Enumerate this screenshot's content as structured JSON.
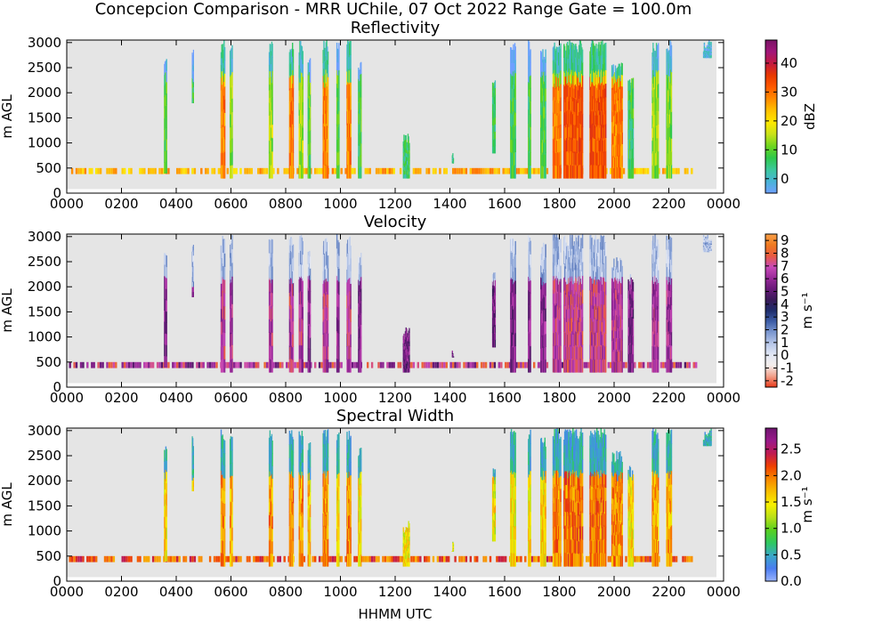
{
  "figure": {
    "suptitle": "Concepcion Comparison - MRR UChile, 07 Oct 2022 Range Gate = 100.0m",
    "xlabel": "HHMM UTC"
  },
  "chart_data": [
    {
      "type": "heatmap",
      "title": "Reflectivity",
      "ylabel": "m AGL",
      "xticks": [
        "0000",
        "0200",
        "0400",
        "0600",
        "0800",
        "1000",
        "1200",
        "1400",
        "1600",
        "1800",
        "2000",
        "2200",
        "0000"
      ],
      "yticks": [
        "0",
        "500",
        "1000",
        "1500",
        "2000",
        "2500",
        "3000"
      ],
      "ylim": [
        0,
        3050
      ],
      "colorbar": {
        "label": "dBZ",
        "range": [
          -5,
          48
        ],
        "ticks": [
          "0",
          "10",
          "20",
          "30",
          "40"
        ],
        "tick_values": [
          0,
          10,
          20,
          30,
          40
        ],
        "colors": [
          "#6fa0ff",
          "#48b4d6",
          "#3cc89c",
          "#2ec84a",
          "#6fd61e",
          "#c8e21a",
          "#ffe800",
          "#ffc200",
          "#ff8a00",
          "#ff5a00",
          "#e83800",
          "#c41a3e",
          "#a2167a",
          "#7a1466"
        ]
      },
      "background": "#e5e5e5"
    },
    {
      "type": "heatmap",
      "title": "Velocity",
      "ylabel": "m s⁻¹",
      "yaxis_label": "m AGL",
      "xticks": [
        "0000",
        "0200",
        "0400",
        "0600",
        "0800",
        "1000",
        "1200",
        "1400",
        "1600",
        "1800",
        "2000",
        "2200",
        "0000"
      ],
      "yticks": [
        "0",
        "500",
        "1000",
        "1500",
        "2000",
        "2500",
        "3000"
      ],
      "ylim": [
        0,
        3050
      ],
      "colorbar": {
        "label": "m s⁻¹",
        "range": [
          -2.5,
          9.5
        ],
        "ticks": [
          "-2",
          "-1",
          "0",
          "1",
          "2",
          "3",
          "4",
          "5",
          "6",
          "7",
          "8",
          "9"
        ],
        "tick_values": [
          -2,
          -1,
          0,
          1,
          2,
          3,
          4,
          5,
          6,
          7,
          8,
          9
        ],
        "colors": [
          "#e83a1a",
          "#f2a08a",
          "#f4eeec",
          "#e0e6f4",
          "#b6c6e8",
          "#7c98d0",
          "#3e5ea8",
          "#1e2c6a",
          "#3a1a58",
          "#6a1a7a",
          "#9a2a9a",
          "#c84ab8",
          "#e85a40",
          "#f07a20",
          "#f8a048"
        ]
      },
      "background": "#e5e5e5"
    },
    {
      "type": "heatmap",
      "title": "Spectral Width",
      "ylabel": "m s⁻¹",
      "yaxis_label": "m AGL",
      "xticks": [
        "0000",
        "0200",
        "0400",
        "0600",
        "0800",
        "1000",
        "1200",
        "1400",
        "1600",
        "1800",
        "2000",
        "2200",
        "0000"
      ],
      "yticks": [
        "0",
        "500",
        "1000",
        "1500",
        "2000",
        "2500",
        "3000"
      ],
      "ylim": [
        0,
        3050
      ],
      "colorbar": {
        "label": "m s⁻¹",
        "range": [
          0,
          2.9
        ],
        "ticks": [
          "0.0",
          "0.5",
          "1.0",
          "1.5",
          "2.0",
          "2.5"
        ],
        "tick_values": [
          0,
          0.5,
          1.0,
          1.5,
          2.0,
          2.5
        ],
        "colors": [
          "#9ab4ff",
          "#4a7cf0",
          "#3aa8c8",
          "#2ec860",
          "#58d020",
          "#b8e018",
          "#f8f000",
          "#f8c000",
          "#f88800",
          "#f04000",
          "#c01a50",
          "#9a1a8a",
          "#701470"
        ]
      },
      "background": "#e5e5e5"
    }
  ]
}
